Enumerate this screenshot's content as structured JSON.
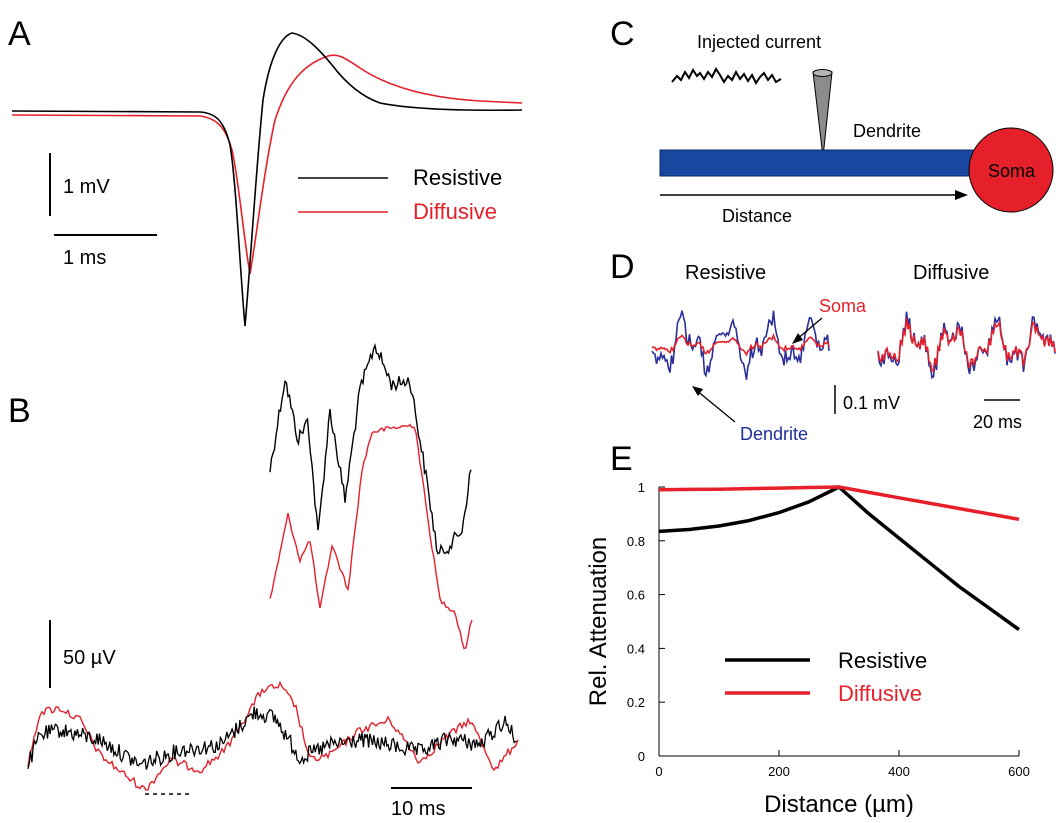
{
  "colors": {
    "resistive": "#000000",
    "diffusive": "#e5202a",
    "dendrite_trace": "#2a2f9a",
    "dendrite_bar": "#17479e",
    "soma": "#e5202a"
  },
  "panel_a": {
    "label": "A",
    "scale_v": "1 mV",
    "scale_t": "1 ms",
    "legend": {
      "resistive": "Resistive",
      "diffusive": "Diffusive"
    }
  },
  "panel_b": {
    "label": "B",
    "scale_v": "50 µV",
    "scale_t": "10 ms"
  },
  "panel_c": {
    "label": "C",
    "injected_current": "Injected current",
    "dendrite": "Dendrite",
    "soma": "Soma",
    "distance": "Distance"
  },
  "panel_d": {
    "label": "D",
    "title_resistive": "Resistive",
    "title_diffusive": "Diffusive",
    "soma_label": "Soma",
    "dendrite_label": "Dendrite",
    "scale_v": "0.1 mV",
    "scale_t": "20 ms"
  },
  "chart_data": {
    "type": "line",
    "panel": "E",
    "xlabel": "Distance (µm)",
    "ylabel": "Rel. Attenuation",
    "xlim": [
      0,
      600
    ],
    "ylim": [
      0,
      1
    ],
    "xticks": [
      "0",
      "200",
      "400",
      "600"
    ],
    "yticks": [
      "0",
      "0.2",
      "0.4",
      "0.6",
      "0.8",
      "1"
    ],
    "x": [
      0,
      50,
      100,
      150,
      200,
      250,
      300,
      350,
      400,
      450,
      500,
      550,
      600
    ],
    "series": [
      {
        "name": "Resistive",
        "values": [
          0.835,
          0.842,
          0.855,
          0.875,
          0.905,
          0.945,
          1.0,
          0.9,
          0.81,
          0.72,
          0.63,
          0.55,
          0.47
        ]
      },
      {
        "name": "Diffusive",
        "values": [
          0.99,
          0.991,
          0.992,
          0.994,
          0.996,
          0.998,
          1.0,
          0.98,
          0.96,
          0.94,
          0.92,
          0.9,
          0.88
        ]
      }
    ],
    "legend_placement": "bottom-center",
    "grid": false
  }
}
